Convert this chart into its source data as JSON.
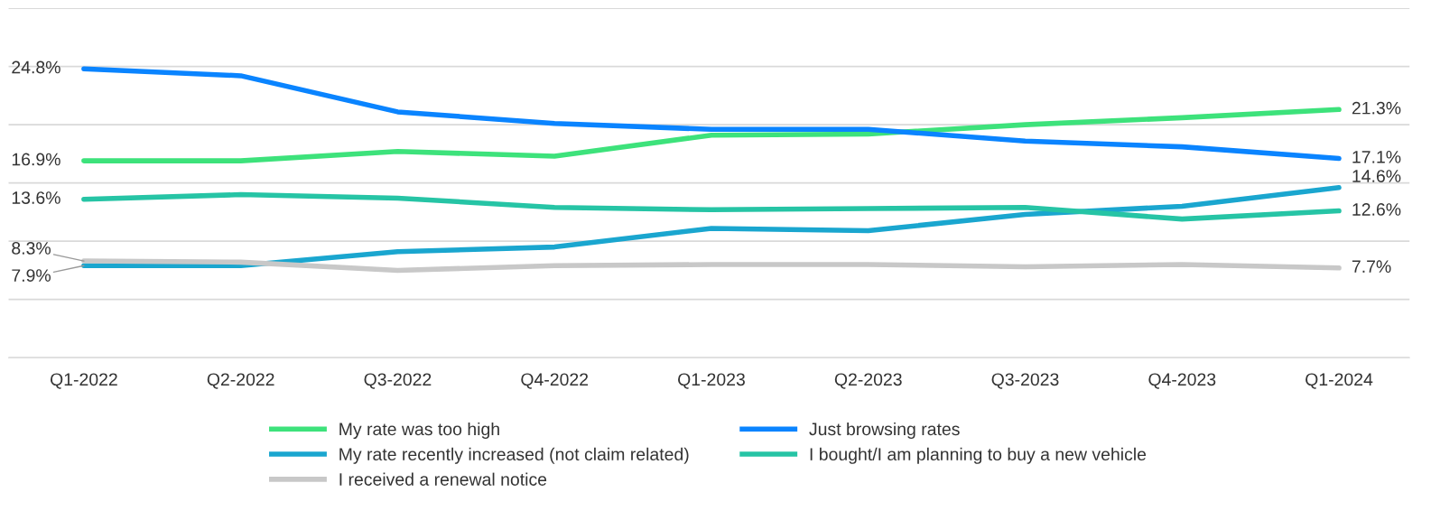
{
  "chart_data": {
    "type": "line",
    "categories": [
      "Q1-2022",
      "Q2-2022",
      "Q3-2022",
      "Q4-2022",
      "Q1-2023",
      "Q2-2023",
      "Q3-2023",
      "Q4-2023",
      "Q1-2024"
    ],
    "ylim": [
      0,
      30
    ],
    "yticks": [
      {
        "value": 0,
        "label": null
      },
      {
        "value": 5,
        "label": null
      },
      {
        "value": 10,
        "label": null
      },
      {
        "value": 15,
        "label": null
      },
      {
        "value": 20,
        "label": null
      },
      {
        "value": 25,
        "label": null
      },
      {
        "value": 30,
        "label": null
      }
    ],
    "tick_labels": "x",
    "grid": "y",
    "legend": "bottom",
    "marker": "none",
    "line_style": "solid",
    "series": [
      {
        "name": "My rate was too high",
        "color": "#3de27b",
        "values": [
          16.9,
          16.9,
          17.7,
          17.3,
          19.1,
          19.2,
          20.0,
          20.6,
          21.3
        ],
        "value_labels": [
          "16.9%",
          null,
          null,
          null,
          null,
          null,
          null,
          null,
          "21.3%"
        ]
      },
      {
        "name": "Just browsing rates",
        "color": "#0a84ff",
        "values": [
          24.8,
          24.2,
          21.1,
          20.1,
          19.6,
          19.6,
          18.6,
          18.1,
          17.1
        ],
        "value_labels": [
          "24.8%",
          null,
          null,
          null,
          null,
          null,
          null,
          null,
          "17.1%"
        ]
      },
      {
        "name": "My rate recently increased (not claim related)",
        "color": "#1aa6cf",
        "values": [
          7.9,
          7.9,
          9.1,
          9.5,
          11.1,
          10.9,
          12.3,
          13.0,
          14.6
        ],
        "value_labels": [
          "7.9%",
          null,
          null,
          null,
          null,
          null,
          null,
          null,
          "14.6%"
        ]
      },
      {
        "name": "I bought/I am planning to buy a new vehicle",
        "color": "#26c4a5",
        "values": [
          13.6,
          14.0,
          13.7,
          12.9,
          12.7,
          12.8,
          12.9,
          11.9,
          12.6
        ],
        "value_labels": [
          "13.6%",
          null,
          null,
          null,
          null,
          null,
          null,
          null,
          "12.6%"
        ]
      },
      {
        "name": "I received a renewal notice",
        "color": "#c8c8c8",
        "values": [
          8.3,
          8.2,
          7.5,
          7.9,
          8.0,
          8.0,
          7.8,
          8.0,
          7.7
        ],
        "value_labels": [
          "8.3%",
          null,
          null,
          null,
          null,
          null,
          null,
          null,
          "7.7%"
        ]
      }
    ]
  }
}
